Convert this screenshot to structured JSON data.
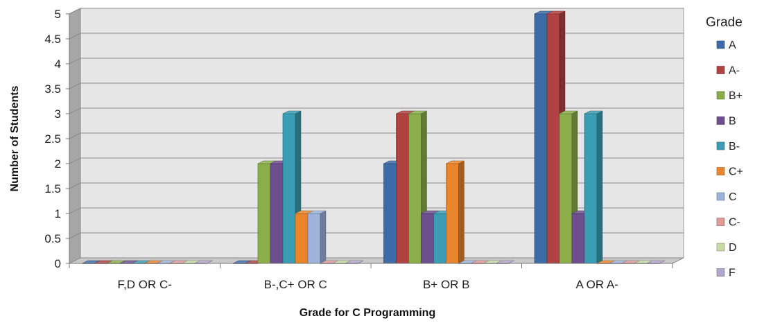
{
  "chart_data": {
    "type": "bar",
    "subtype": "3d-clustered-column",
    "xlabel": "Grade for C Programming",
    "ylabel": "Number of Students",
    "ylim": [
      0,
      5
    ],
    "yticks": [
      "0",
      "0.5",
      "1",
      "1.5",
      "2",
      "2.5",
      "3",
      "3.5",
      "4",
      "4.5",
      "5"
    ],
    "grid": true,
    "legend": {
      "title": "Grade",
      "placement": "right"
    },
    "categories": [
      "F,D OR C-",
      "B-,C+ OR C",
      "B+ OR B",
      "A OR A-"
    ],
    "series": [
      {
        "name": "A",
        "color": "#3D6BA8",
        "values": [
          0,
          0,
          2,
          5
        ]
      },
      {
        "name": "A-",
        "color": "#B04241",
        "values": [
          0,
          0,
          3,
          5
        ]
      },
      {
        "name": "B+",
        "color": "#8CAE4A",
        "values": [
          0,
          2,
          3,
          3
        ]
      },
      {
        "name": "B",
        "color": "#6D4E8F",
        "values": [
          0,
          2,
          1,
          1
        ]
      },
      {
        "name": "B-",
        "color": "#3A9DB3",
        "values": [
          0,
          3,
          1,
          3
        ]
      },
      {
        "name": "C+",
        "color": "#E9852D",
        "values": [
          0,
          1,
          2,
          0
        ]
      },
      {
        "name": "C",
        "color": "#9DB3DB",
        "values": [
          0,
          1,
          0,
          0
        ]
      },
      {
        "name": "C-",
        "color": "#DE9B9A",
        "values": [
          0,
          0,
          0,
          0
        ]
      },
      {
        "name": "D",
        "color": "#C4DBA3",
        "values": [
          0,
          0,
          0,
          0
        ]
      },
      {
        "name": "F",
        "color": "#B3A6CC",
        "values": [
          0,
          0,
          0,
          0
        ]
      }
    ]
  }
}
